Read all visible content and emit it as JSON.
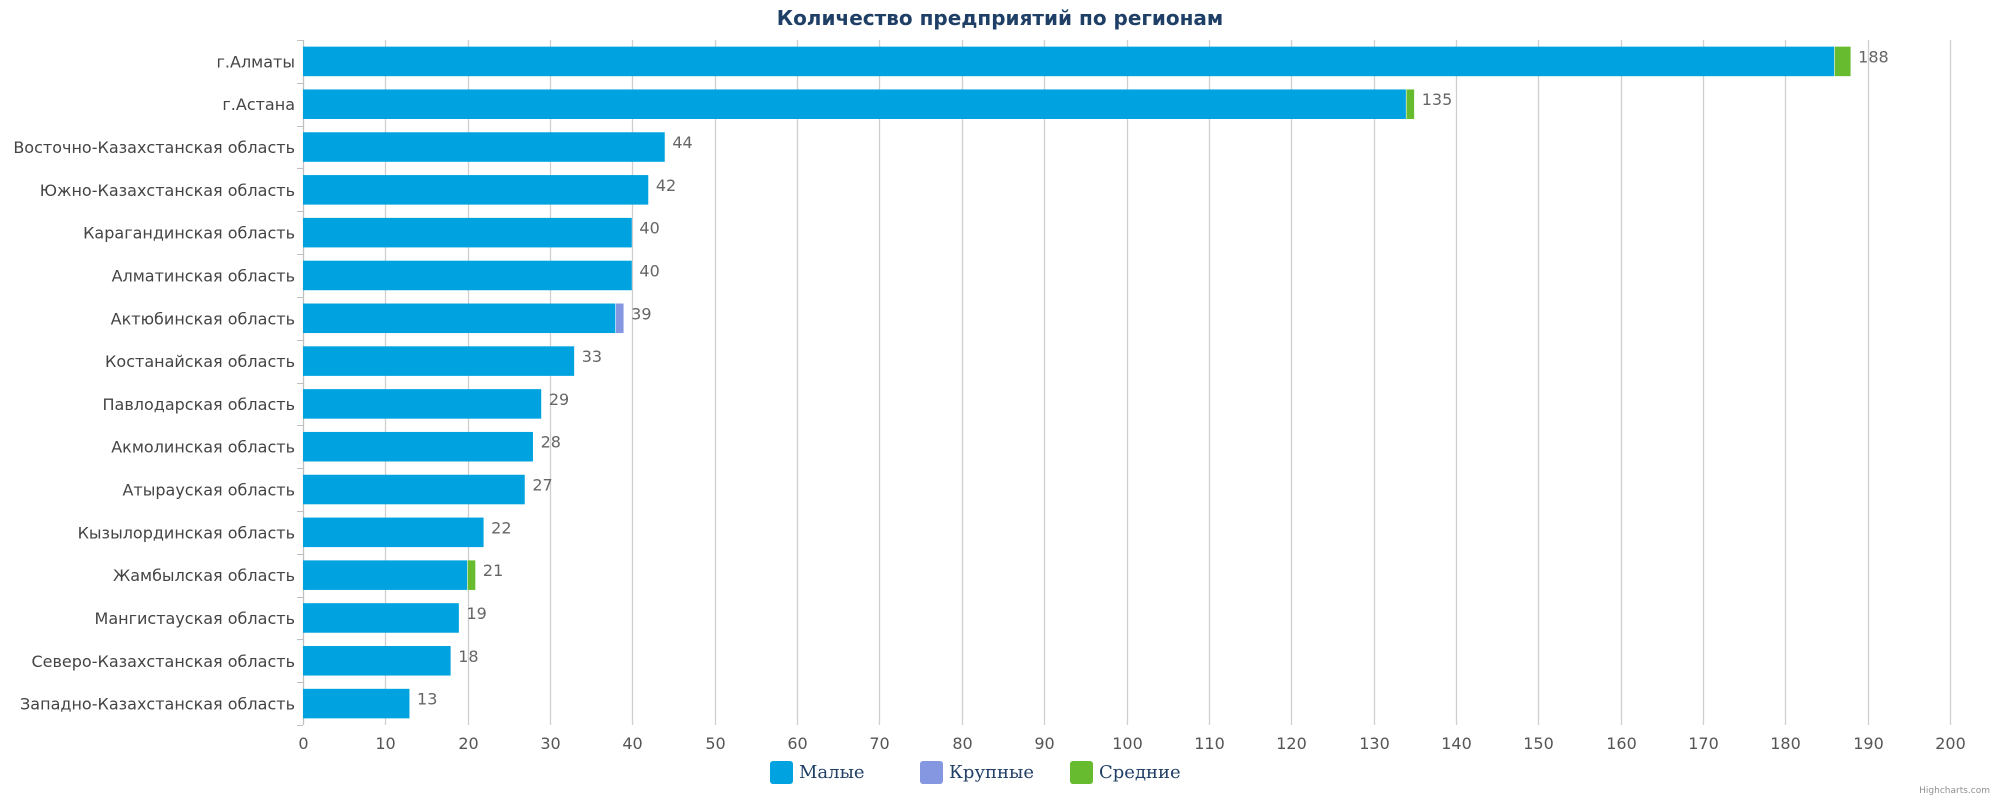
{
  "chart_data": {
    "type": "bar",
    "orientation": "horizontal",
    "stacked": true,
    "title": "Количество предприятий по регионам",
    "xlabel": "",
    "ylabel": "",
    "xlim": [
      0,
      200
    ],
    "x_ticks": [
      0,
      10,
      20,
      30,
      40,
      50,
      60,
      70,
      80,
      90,
      100,
      110,
      120,
      130,
      140,
      150,
      160,
      170,
      180,
      190,
      200
    ],
    "grid": true,
    "legend_position": "bottom-center",
    "categories": [
      "г.Алматы",
      "г.Астана",
      "Восточно-Казахстанская область",
      "Южно-Казахстанская область",
      "Карагандинская область",
      "Алматинская область",
      "Актюбинская область",
      "Костанайская область",
      "Павлодарская область",
      "Акмолинская область",
      "Атырауская область",
      "Кызылординская область",
      "Жамбылская область",
      "Мангистауская область",
      "Северо-Казахстанская область",
      "Западно-Казахстанская область"
    ],
    "series": [
      {
        "name": "Малые",
        "color": "#00a3e0",
        "values": [
          186,
          134,
          44,
          42,
          40,
          40,
          38,
          33,
          29,
          28,
          27,
          22,
          20,
          19,
          18,
          13
        ]
      },
      {
        "name": "Крупные",
        "color": "#8497e0",
        "values": [
          0,
          0,
          0,
          0,
          0,
          0,
          1,
          0,
          0,
          0,
          0,
          0,
          0,
          0,
          0,
          0
        ]
      },
      {
        "name": "Средние",
        "color": "#66bb2e",
        "values": [
          2,
          1,
          0,
          0,
          0,
          0,
          0,
          0,
          0,
          0,
          0,
          0,
          1,
          0,
          0,
          0
        ]
      }
    ],
    "totals": [
      188,
      135,
      44,
      42,
      40,
      40,
      39,
      33,
      29,
      28,
      27,
      22,
      21,
      19,
      18,
      13
    ]
  },
  "credits": "Highcharts.com"
}
